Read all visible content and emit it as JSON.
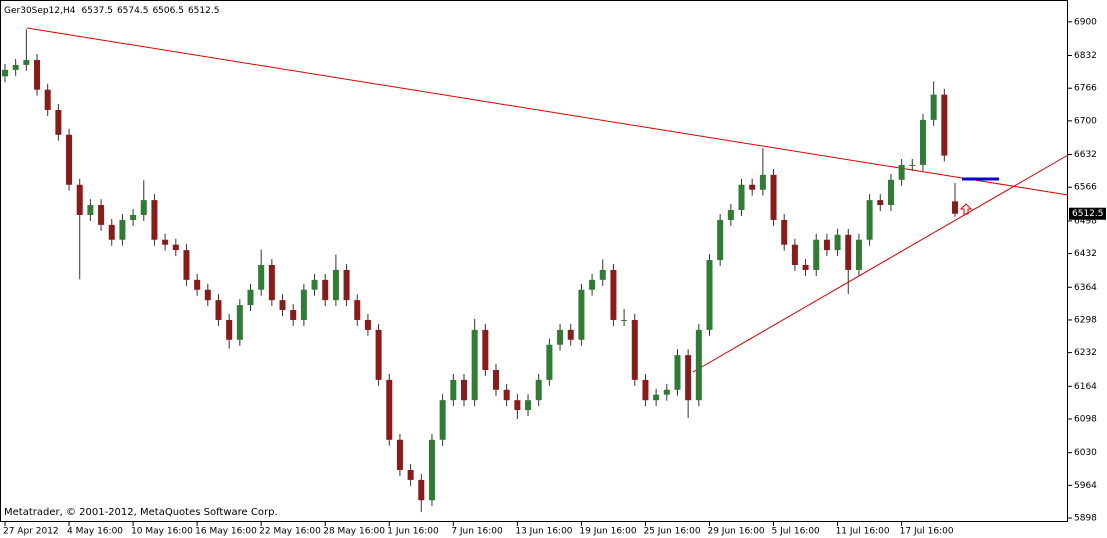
{
  "chart_data": {
    "type": "candlestick",
    "title": "Ger30Sep12,H4",
    "credit": "Metatrader, © 2001-2012, MetaQuotes Software Corp.",
    "categories": [
      "27 Apr 2012",
      null,
      null,
      null,
      null,
      null,
      "4 May 16:00",
      null,
      null,
      null,
      null,
      null,
      "10 May 16:00",
      null,
      null,
      null,
      null,
      null,
      "16 May 16:00",
      null,
      null,
      null,
      null,
      null,
      "22 May 16:00",
      null,
      null,
      null,
      null,
      null,
      "28 May 16:00",
      null,
      null,
      null,
      null,
      null,
      "1 Jun 16:00",
      null,
      null,
      null,
      null,
      null,
      "7 Jun 16:00",
      null,
      null,
      null,
      null,
      null,
      "13 Jun 16:00",
      null,
      null,
      null,
      null,
      null,
      "19 Jun 16:00",
      null,
      null,
      null,
      null,
      null,
      "25 Jun 16:00",
      null,
      null,
      null,
      null,
      null,
      "29 Jun 16:00",
      null,
      null,
      null,
      null,
      null,
      "5 Jul 16:00",
      null,
      null,
      null,
      null,
      null,
      "11 Jul 16:00",
      null,
      null,
      null,
      null,
      null,
      "17 Jul 16:00",
      null,
      null,
      null,
      null,
      null
    ],
    "open": [
      6790,
      6803,
      6813,
      6823,
      6763,
      6722,
      6672,
      6571,
      6510,
      6530,
      6490,
      6460,
      6500,
      6510,
      6540,
      6460,
      6450,
      6439,
      6379,
      6359,
      6338,
      6298,
      6258,
      6328,
      6359,
      6409,
      6338,
      6318,
      6298,
      6359,
      6379,
      6338,
      6399,
      6338,
      6298,
      6278,
      6177,
      6056,
      5995,
      5975,
      5934,
      6056,
      6136,
      6177,
      6136,
      6278,
      6197,
      6157,
      6136,
      6116,
      6136,
      6177,
      6248,
      6278,
      6258,
      6359,
      6379,
      6399,
      6298,
      6298,
      6177,
      6136,
      6147,
      6157,
      6227,
      6136,
      6278,
      6419,
      6500,
      6520,
      6571,
      6561,
      6591,
      6500,
      6450,
      6409,
      6399,
      6460,
      6439,
      6470,
      6399,
      6460,
      6540,
      6530,
      6581,
      6611,
      6611,
      6702,
      6753,
      6537.5
    ],
    "high": [
      6815,
      6825,
      6885,
      6835,
      6775,
      6734,
      6684,
      6583,
      6542,
      6542,
      6502,
      6512,
      6522,
      6580,
      6552,
      6472,
      6462,
      6451,
      6391,
      6371,
      6350,
      6310,
      6340,
      6371,
      6440,
      6421,
      6350,
      6330,
      6371,
      6391,
      6391,
      6430,
      6411,
      6350,
      6310,
      6290,
      6189,
      6068,
      6007,
      5987,
      6068,
      6148,
      6189,
      6189,
      6300,
      6290,
      6209,
      6169,
      6148,
      6148,
      6189,
      6260,
      6290,
      6290,
      6371,
      6391,
      6420,
      6411,
      6320,
      6310,
      6189,
      6159,
      6169,
      6239,
      6239,
      6290,
      6431,
      6512,
      6532,
      6583,
      6583,
      6645,
      6603,
      6512,
      6462,
      6421,
      6472,
      6472,
      6482,
      6482,
      6472,
      6552,
      6552,
      6593,
      6623,
      6623,
      6714,
      6780,
      6765,
      6574.5
    ],
    "low": [
      6778,
      6791,
      6801,
      6751,
      6710,
      6660,
      6559,
      6380,
      6498,
      6478,
      6448,
      6448,
      6488,
      6498,
      6448,
      6438,
      6427,
      6367,
      6347,
      6326,
      6286,
      6240,
      6246,
      6316,
      6347,
      6326,
      6306,
      6286,
      6286,
      6347,
      6326,
      6326,
      6326,
      6286,
      6266,
      6165,
      6044,
      5983,
      5963,
      5910,
      5922,
      6044,
      6124,
      6124,
      6124,
      6185,
      6145,
      6124,
      6098,
      6104,
      6124,
      6165,
      6236,
      6246,
      6246,
      6347,
      6367,
      6286,
      6286,
      6165,
      6124,
      6124,
      6135,
      6145,
      6100,
      6124,
      6266,
      6407,
      6488,
      6508,
      6549,
      6549,
      6488,
      6438,
      6397,
      6387,
      6387,
      6427,
      6427,
      6350,
      6387,
      6448,
      6518,
      6518,
      6569,
      6599,
      6599,
      6690,
      6618,
      6506.5
    ],
    "close": [
      6803,
      6813,
      6823,
      6763,
      6722,
      6672,
      6571,
      6510,
      6530,
      6490,
      6460,
      6500,
      6510,
      6540,
      6460,
      6450,
      6439,
      6379,
      6359,
      6338,
      6298,
      6258,
      6328,
      6359,
      6409,
      6338,
      6318,
      6298,
      6359,
      6379,
      6338,
      6399,
      6338,
      6298,
      6278,
      6177,
      6056,
      5995,
      5975,
      5934,
      6056,
      6136,
      6177,
      6136,
      6278,
      6197,
      6157,
      6136,
      6116,
      6136,
      6177,
      6248,
      6278,
      6258,
      6359,
      6379,
      6399,
      6298,
      6298,
      6177,
      6136,
      6147,
      6157,
      6227,
      6136,
      6278,
      6419,
      6500,
      6520,
      6571,
      6561,
      6591,
      6500,
      6450,
      6409,
      6399,
      6460,
      6439,
      6470,
      6399,
      6460,
      6540,
      6530,
      6581,
      6611,
      6611,
      6702,
      6753,
      6630,
      6512.5
    ],
    "up_color": "#2e7d32",
    "down_color": "#8b1a1a",
    "wick_color": "#333333",
    "ylim": [
      5890,
      6934
    ],
    "yticks": [
      5898,
      5964,
      6030,
      6098,
      6164,
      6232,
      6298,
      6364,
      6432,
      6498,
      6566,
      6632,
      6700,
      6766,
      6832,
      6900
    ]
  }
}
